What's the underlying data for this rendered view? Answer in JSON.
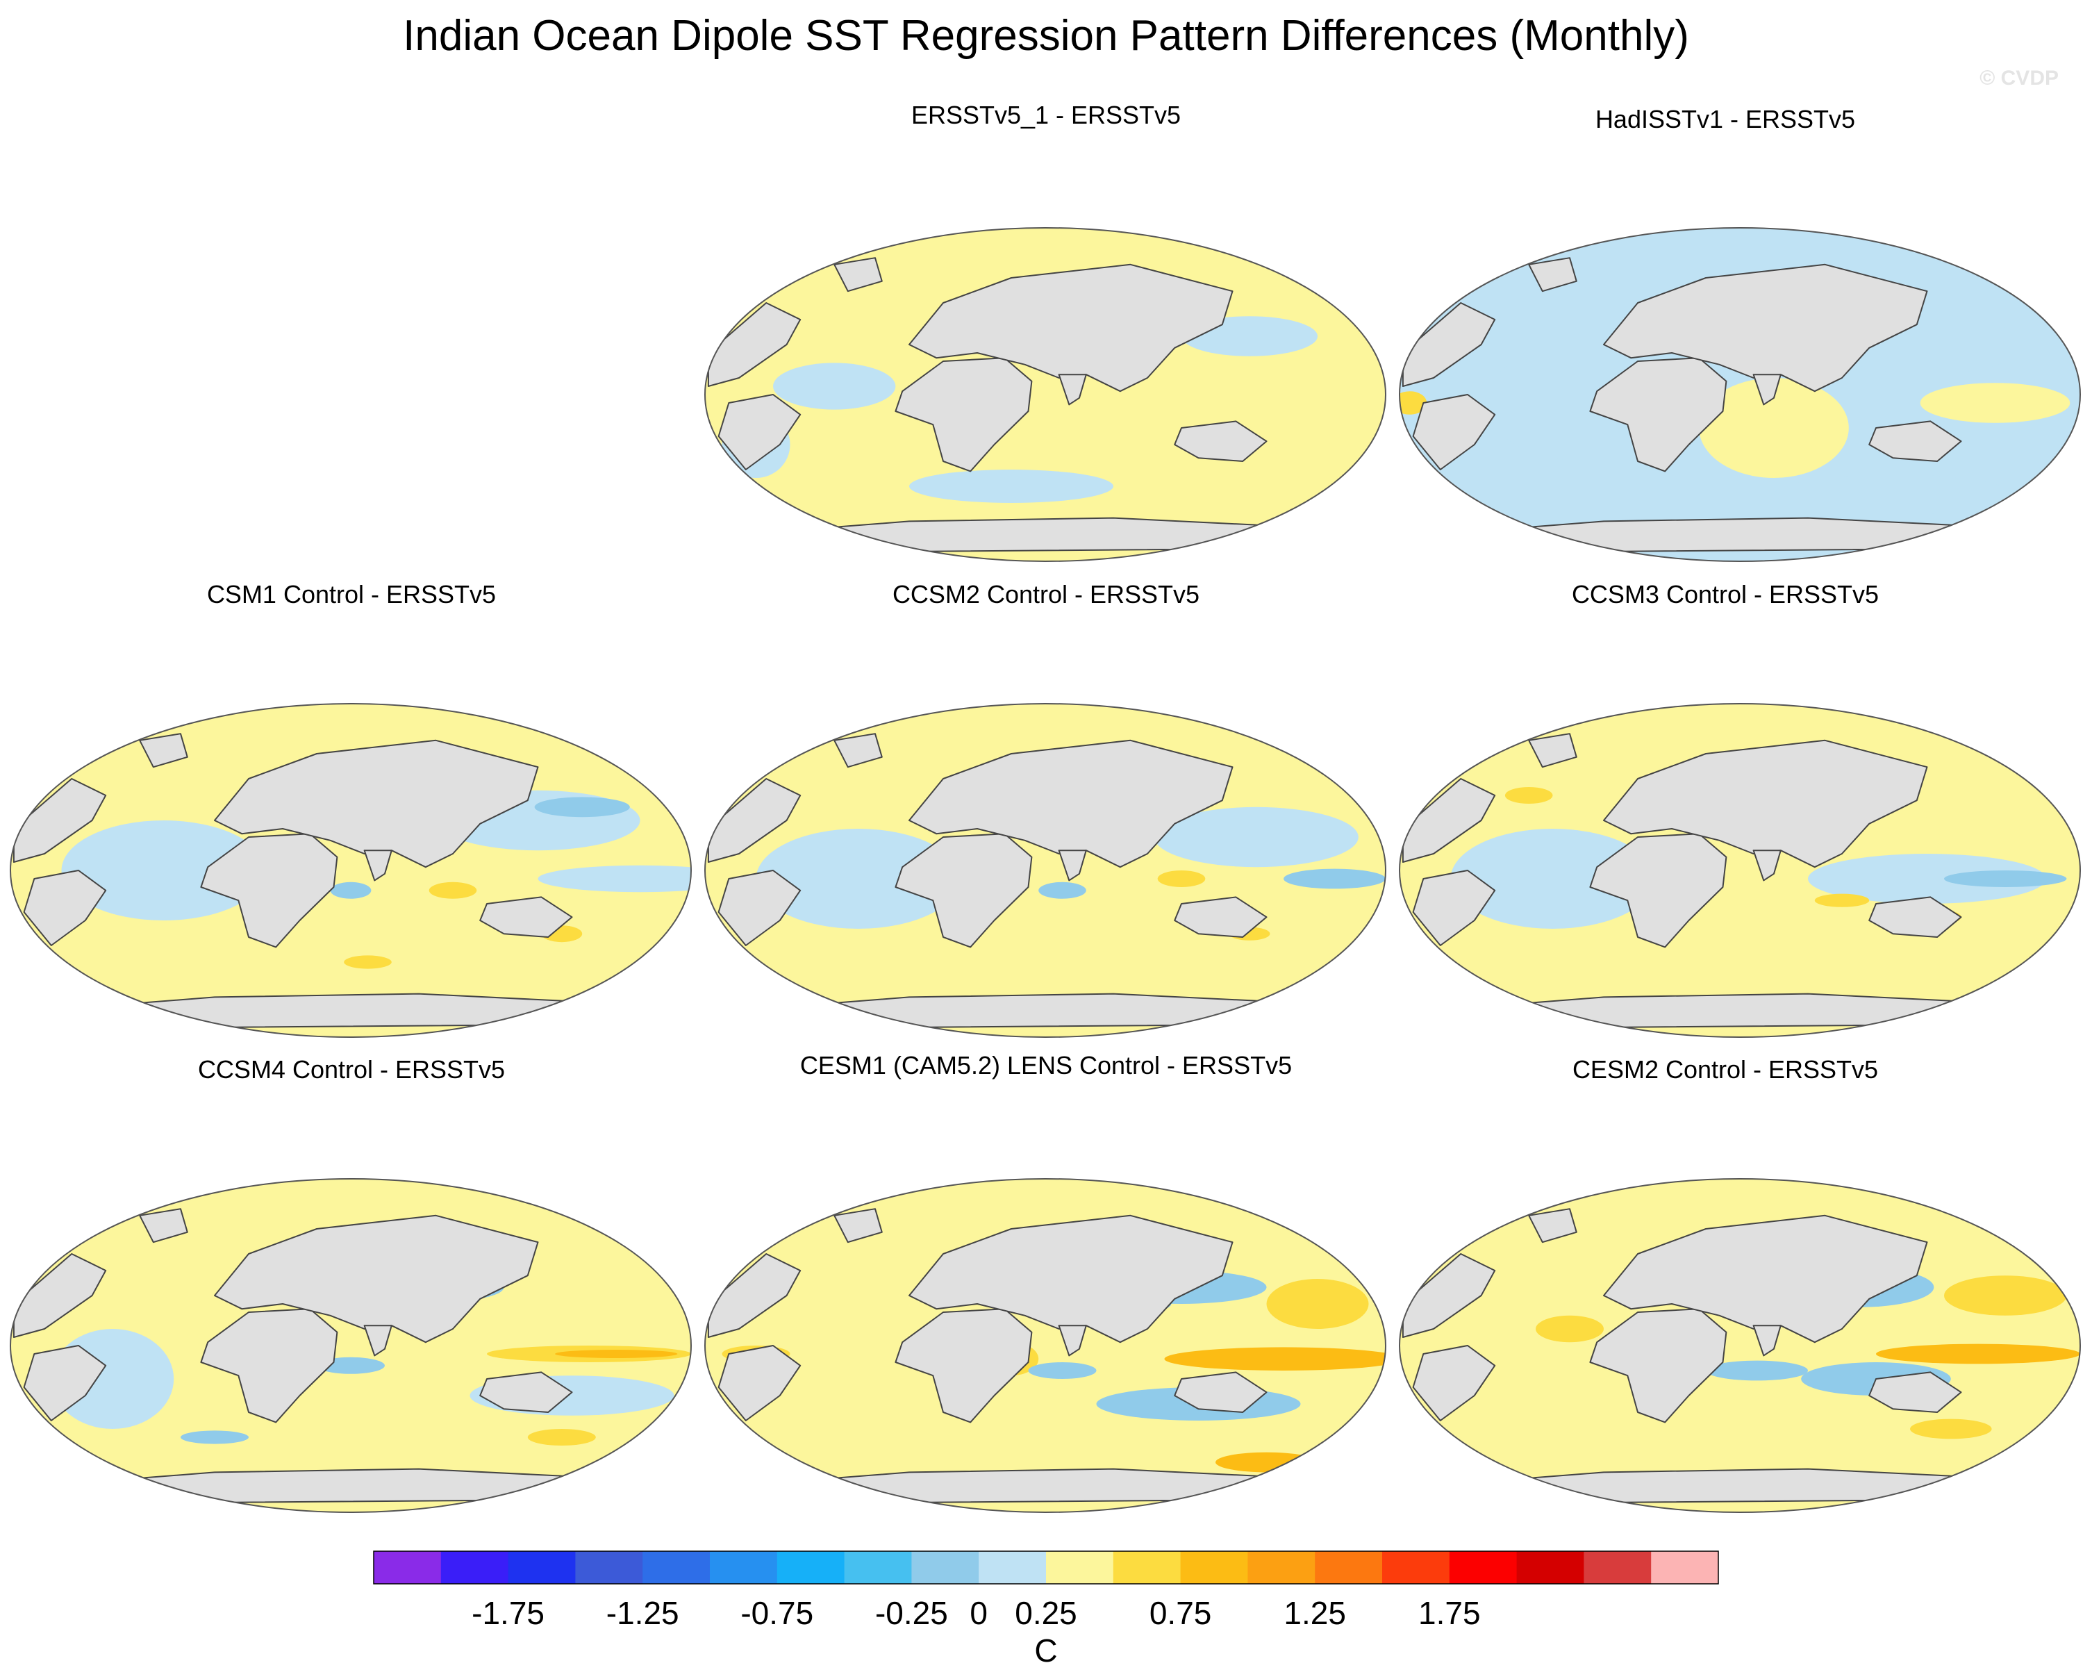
{
  "figure": {
    "title": "Indian Ocean Dipole SST Regression Pattern Differences (Monthly)",
    "watermark": "© CVDP"
  },
  "chart_data": {
    "type": "heatmap",
    "projection": "Robinson (global maps)",
    "variable": "SST regression pattern difference",
    "units": "C",
    "panels": [
      {
        "id": "p1",
        "title": "ERSSTv5_1 - ERSSTv5"
      },
      {
        "id": "p2",
        "title": "HadISSTv1 - ERSSTv5"
      },
      {
        "id": "p3",
        "title": "CSM1 Control - ERSSTv5"
      },
      {
        "id": "p4",
        "title": "CCSM2 Control - ERSSTv5"
      },
      {
        "id": "p5",
        "title": "CCSM3 Control - ERSSTv5"
      },
      {
        "id": "p6",
        "title": "CCSM4 Control - ERSSTv5"
      },
      {
        "id": "p7",
        "title": "CESM1 (CAM5.2) LENS Control - ERSSTv5"
      },
      {
        "id": "p8",
        "title": "CESM2 Control - ERSSTv5"
      }
    ],
    "colorbar": {
      "levels": [
        -2.0,
        -1.75,
        -1.5,
        -1.25,
        -1.0,
        -0.75,
        -0.5,
        -0.25,
        0,
        0.25,
        0.5,
        0.75,
        1.0,
        1.25,
        1.5,
        1.75,
        2.0
      ],
      "colors": [
        "#8a2be8",
        "#3a1ef8",
        "#1e32f0",
        "#3c5ad8",
        "#2e6ee8",
        "#2690f0",
        "#16b0f8",
        "#46c0f0",
        "#90cbea",
        "#bfe2f4",
        "#fcf69c",
        "#fcdc40",
        "#fcbc14",
        "#fca012",
        "#fc7810",
        "#fc3c0c",
        "#fc0000",
        "#d40000",
        "#d83c3c",
        "#fcb4b4"
      ],
      "tick_labels": [
        "-1.75",
        "-1.25",
        "-0.75",
        "-0.25",
        "0",
        "0.25",
        "0.75",
        "1.25",
        "1.75"
      ],
      "label": "C"
    },
    "colors": {
      "land": "#e0e0e0",
      "coast": "#444444",
      "weak_pos": "#fcf69c",
      "weak_neg": "#bfe2f4",
      "mod_pos": "#fcdc40",
      "mod_neg": "#90cbea",
      "strong_pos": "#fcbc14",
      "strong_neg": "#46c0f0"
    }
  }
}
